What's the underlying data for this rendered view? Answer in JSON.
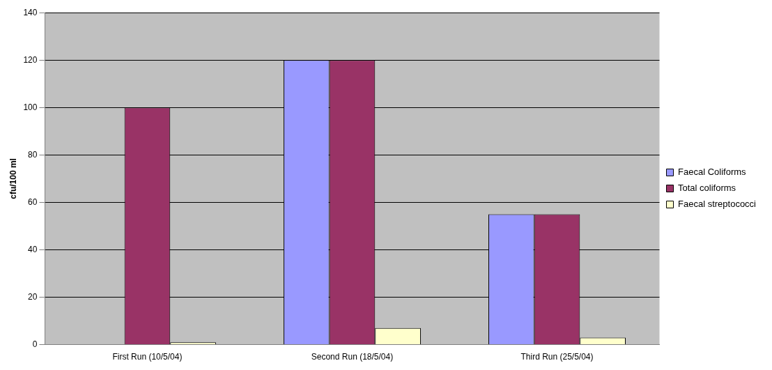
{
  "chart_data": {
    "type": "bar",
    "ylabel": "cfu/100 ml",
    "categories": [
      "First Run (10/5/04)",
      "Second Run (18/5/04)",
      "Third Run (25/5/04)"
    ],
    "series": [
      {
        "name": "Faecal Coliforms",
        "color": "#9999ff",
        "values": [
          0,
          120,
          55
        ]
      },
      {
        "name": "Total coliforms",
        "color": "#993366",
        "values": [
          100,
          120,
          55
        ]
      },
      {
        "name": "Faecal streptococci",
        "color": "#ffffcc",
        "values": [
          1,
          7,
          3
        ]
      }
    ],
    "ylim": [
      0,
      140
    ],
    "yticks": [
      0,
      20,
      40,
      60,
      80,
      100,
      120,
      140
    ],
    "grid": "y",
    "legend": "right"
  }
}
